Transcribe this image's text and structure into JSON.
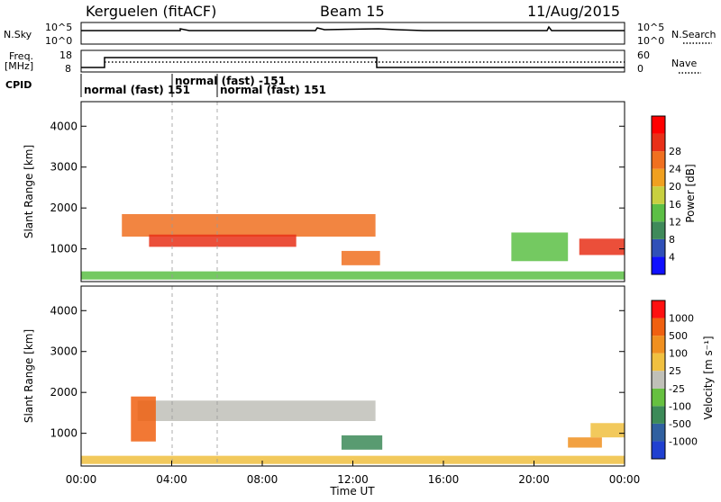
{
  "header": {
    "station": "Kerguelen (fitACF)",
    "beam": "Beam 15",
    "date": "11/Aug/2015"
  },
  "top_panels": {
    "nsky_label": "N.Sky",
    "nsky_ticks": [
      "10^5",
      "10^0"
    ],
    "nsearch_label": "N.Search",
    "nsearch_ticks": [
      "10^5",
      "10^0"
    ],
    "freq_label": "Freq.",
    "freq_unit": "[MHz]",
    "freq_ticks": [
      "18",
      "8"
    ],
    "nave_label": "Nave",
    "nave_ticks": [
      "60",
      "0"
    ],
    "cpid_label": "CPID",
    "cpid_segments": [
      {
        "text": "normal (fast) 151",
        "start_hour": 0
      },
      {
        "text": "normal (fast) -151",
        "start_hour": 4
      },
      {
        "text": "normal (fast) 151",
        "start_hour": 6
      }
    ]
  },
  "chart_data": [
    {
      "type": "heatmap",
      "name": "power",
      "ylabel": "Slant Range [km]",
      "yticks": [
        "1000",
        "2000",
        "3000",
        "4000"
      ],
      "ylim": [
        200,
        4600
      ],
      "xlim": [
        0,
        24
      ],
      "colorbar_label": "Power [dB]",
      "colorbar_ticks": [
        "4",
        "8",
        "12",
        "16",
        "20",
        "24",
        "28"
      ],
      "colorbar_colors": [
        "#1010ff",
        "#3050b8",
        "#3f8a5a",
        "#5cbf45",
        "#c8d040",
        "#f0a020",
        "#f07020",
        "#e83018",
        "#ff0000"
      ],
      "regions": [
        {
          "t": [
            0.0,
            24.0
          ],
          "r": [
            250,
            450
          ],
          "level": 0.35
        },
        {
          "t": [
            1.8,
            13.0
          ],
          "r": [
            1300,
            1850
          ],
          "level": 0.7
        },
        {
          "t": [
            3.0,
            9.5
          ],
          "r": [
            1050,
            1350
          ],
          "level": 0.9
        },
        {
          "t": [
            11.5,
            13.2
          ],
          "r": [
            600,
            950
          ],
          "level": 0.8
        },
        {
          "t": [
            19.0,
            21.5
          ],
          "r": [
            700,
            1400
          ],
          "level": 0.35
        },
        {
          "t": [
            22.0,
            24.0
          ],
          "r": [
            850,
            1250
          ],
          "level": 0.9
        }
      ]
    },
    {
      "type": "heatmap",
      "name": "velocity",
      "ylabel": "Slant Range [km]",
      "yticks": [
        "1000",
        "2000",
        "3000",
        "4000"
      ],
      "ylim": [
        200,
        4600
      ],
      "xlim": [
        0,
        24
      ],
      "xlabel": "Time UT",
      "xticks": [
        "00:00",
        "04:00",
        "08:00",
        "12:00",
        "16:00",
        "20:00",
        "00:00"
      ],
      "colorbar_label": "Velocity [m s⁻¹]",
      "colorbar_ticks": [
        "1000",
        "500",
        "100",
        "25",
        "-25",
        "-100",
        "-500",
        "-1000"
      ],
      "colorbar_colors": [
        "#2040d0",
        "#3060a0",
        "#3c8a58",
        "#66c040",
        "#c0c0b8",
        "#f0c040",
        "#f09020",
        "#f06010",
        "#ff1010"
      ],
      "regions": [
        {
          "t": [
            0.0,
            24.0
          ],
          "r": [
            250,
            450
          ],
          "level": 0.6
        },
        {
          "t": [
            2.5,
            13.0
          ],
          "r": [
            1300,
            1800
          ],
          "level": 0.45
        },
        {
          "t": [
            2.2,
            3.3
          ],
          "r": [
            800,
            1900
          ],
          "level": 0.85
        },
        {
          "t": [
            11.5,
            13.3
          ],
          "r": [
            600,
            950
          ],
          "level": 0.25
        },
        {
          "t": [
            21.5,
            23.0
          ],
          "r": [
            650,
            900
          ],
          "level": 0.8
        },
        {
          "t": [
            22.5,
            24.0
          ],
          "r": [
            900,
            1250
          ],
          "level": 0.6
        }
      ]
    }
  ]
}
